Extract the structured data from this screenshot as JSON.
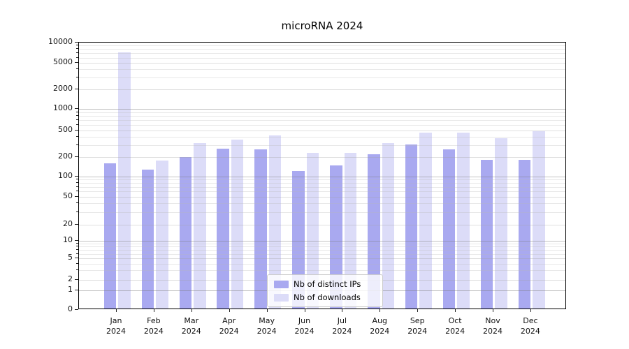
{
  "title": "microRNA 2024",
  "legend": {
    "items": [
      {
        "label": "Nb of distinct IPs",
        "swatch": "#a9a9f0"
      },
      {
        "label": "Nb of downloads",
        "swatch": "#dcdcf8"
      }
    ]
  },
  "chart_data": {
    "type": "bar",
    "title": "microRNA 2024",
    "categories": [
      "Jan",
      "Feb",
      "Mar",
      "Apr",
      "May",
      "Jun",
      "Jul",
      "Aug",
      "Sep",
      "Oct",
      "Nov",
      "Dec"
    ],
    "year": "2024",
    "series": [
      {
        "name": "Nb of distinct IPs",
        "color": "#a9a9f0",
        "values": [
          150,
          120,
          190,
          250,
          245,
          115,
          140,
          210,
          290,
          245,
          170,
          170
        ]
      },
      {
        "name": "Nb of downloads",
        "color": "#dcdcf8",
        "values": [
          6800,
          165,
          310,
          350,
          400,
          220,
          220,
          310,
          440,
          445,
          365,
          465
        ]
      }
    ],
    "yscale": "symlog",
    "ylim": [
      0,
      10000
    ],
    "yticks": [
      0,
      1,
      2,
      5,
      10,
      20,
      50,
      100,
      200,
      500,
      1000,
      2000,
      5000,
      10000
    ],
    "grid": "on",
    "legend_position": "lower center"
  }
}
